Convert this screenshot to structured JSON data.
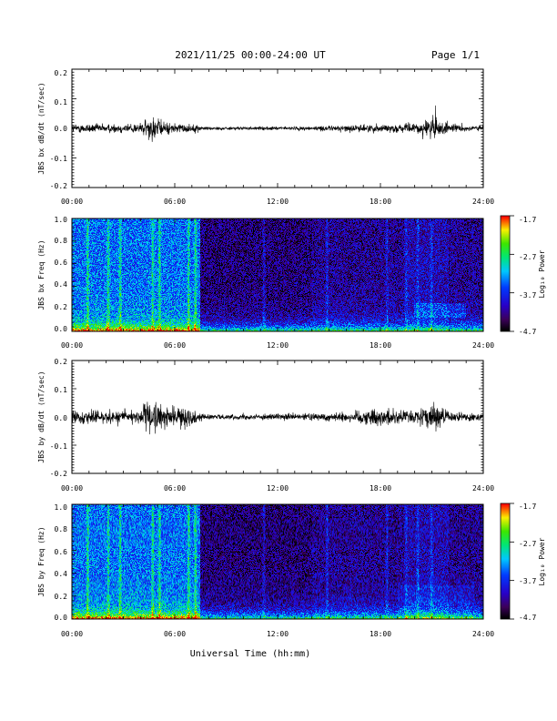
{
  "header": {
    "title": "2021/11/25  00:00-24:00 UT",
    "page": "Page 1/1"
  },
  "x_axis": {
    "label": "Universal Time (hh:mm)",
    "ticks": [
      "00:00",
      "06:00",
      "12:00",
      "18:00",
      "24:00"
    ]
  },
  "colorbar": {
    "label": "Log₁₀ Power",
    "ticks": [
      "-1.7",
      "-2.7",
      "-3.7",
      "-4.7"
    ],
    "range": [
      -4.7,
      -1.7
    ]
  },
  "chart_data": [
    {
      "type": "line",
      "ylabel": "JBS bx dB/dt (nT/sec)",
      "xlim": [
        0,
        24
      ],
      "ylim": [
        -0.2,
        0.2
      ],
      "yticks": [
        "0.2",
        "0.1",
        "0.0",
        "-0.1",
        "-0.2"
      ],
      "x_unit": "hours UT",
      "envelope": {
        "x": [
          0,
          1,
          2,
          3,
          4,
          4.5,
          4.8,
          5.0,
          5.3,
          6,
          6.5,
          7,
          7.5,
          8,
          10,
          12,
          14,
          15,
          16,
          17,
          18,
          19,
          20,
          21,
          21.2,
          21.5,
          22,
          23,
          24
        ],
        "amp": [
          0.02,
          0.022,
          0.02,
          0.022,
          0.025,
          0.05,
          0.06,
          0.05,
          0.03,
          0.025,
          0.02,
          0.02,
          0.012,
          0.008,
          0.007,
          0.008,
          0.01,
          0.012,
          0.015,
          0.017,
          0.02,
          0.018,
          0.022,
          0.05,
          0.06,
          0.04,
          0.02,
          0.015,
          0.012
        ]
      }
    },
    {
      "type": "heatmap",
      "ylabel": "JBS bx Freq (Hz)",
      "xlim": [
        0,
        24
      ],
      "ylim": [
        0,
        1
      ],
      "yticks": [
        "1.0",
        "0.8",
        "0.6",
        "0.4",
        "0.2",
        "0.0"
      ],
      "zlim": [
        -4.7,
        -1.7
      ],
      "bright_bands_hours": [
        0.9,
        2.1,
        2.8,
        4.7,
        5.1,
        6.8,
        7.2,
        11.2,
        14.9,
        18.4,
        19.5,
        20.2,
        21.0
      ],
      "quiet_after_hour": 7.5
    },
    {
      "type": "line",
      "ylabel": "JBS by dB/dt (nT/sec)",
      "xlim": [
        0,
        24
      ],
      "ylim": [
        -0.2,
        0.2
      ],
      "yticks": [
        "0.2",
        "0.1",
        "0.0",
        "-0.1",
        "-0.2"
      ],
      "x_unit": "hours UT",
      "envelope": {
        "x": [
          0,
          1,
          2,
          3,
          4,
          4.5,
          4.8,
          5.0,
          5.3,
          6,
          6.5,
          7,
          7.5,
          8,
          10,
          12,
          14,
          15,
          16,
          17,
          18,
          19,
          20,
          21,
          21.2,
          21.5,
          22,
          23,
          24
        ],
        "amp": [
          0.03,
          0.035,
          0.03,
          0.035,
          0.04,
          0.07,
          0.09,
          0.07,
          0.05,
          0.045,
          0.05,
          0.04,
          0.02,
          0.012,
          0.012,
          0.014,
          0.018,
          0.02,
          0.025,
          0.035,
          0.045,
          0.035,
          0.03,
          0.06,
          0.07,
          0.05,
          0.025,
          0.02,
          0.018
        ]
      }
    },
    {
      "type": "heatmap",
      "ylabel": "JBS by Freq (Hz)",
      "xlim": [
        0,
        24
      ],
      "ylim": [
        0,
        1
      ],
      "yticks": [
        "1.0",
        "0.8",
        "0.6",
        "0.4",
        "0.2",
        "0.0"
      ],
      "zlim": [
        -4.7,
        -1.7
      ],
      "bright_bands_hours": [
        0.9,
        2.1,
        2.8,
        4.7,
        5.1,
        6.8,
        7.2,
        11.2,
        14.9,
        18.4,
        19.5,
        20.2,
        21.0
      ],
      "quiet_after_hour": 7.5
    }
  ]
}
